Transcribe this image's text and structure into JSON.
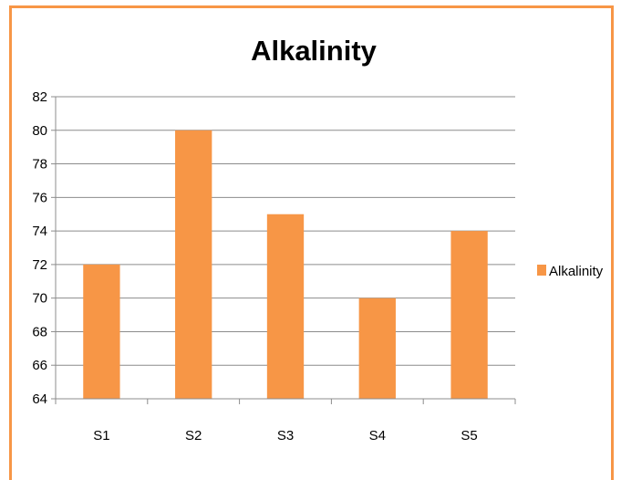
{
  "chart_data": {
    "type": "bar",
    "title": "Alkalinity",
    "categories": [
      "S1",
      "S2",
      "S3",
      "S4",
      "S5"
    ],
    "series": [
      {
        "name": "Alkalinity",
        "values": [
          72,
          80,
          75,
          70,
          74
        ]
      }
    ],
    "ylim": [
      64,
      82
    ],
    "yticks": [
      64,
      66,
      68,
      70,
      72,
      74,
      76,
      78,
      80,
      82
    ],
    "xlabel": "",
    "ylabel": "",
    "grid": true,
    "legend_position": "right",
    "bar_color": "#f79646",
    "frame_color": "#f79646"
  }
}
